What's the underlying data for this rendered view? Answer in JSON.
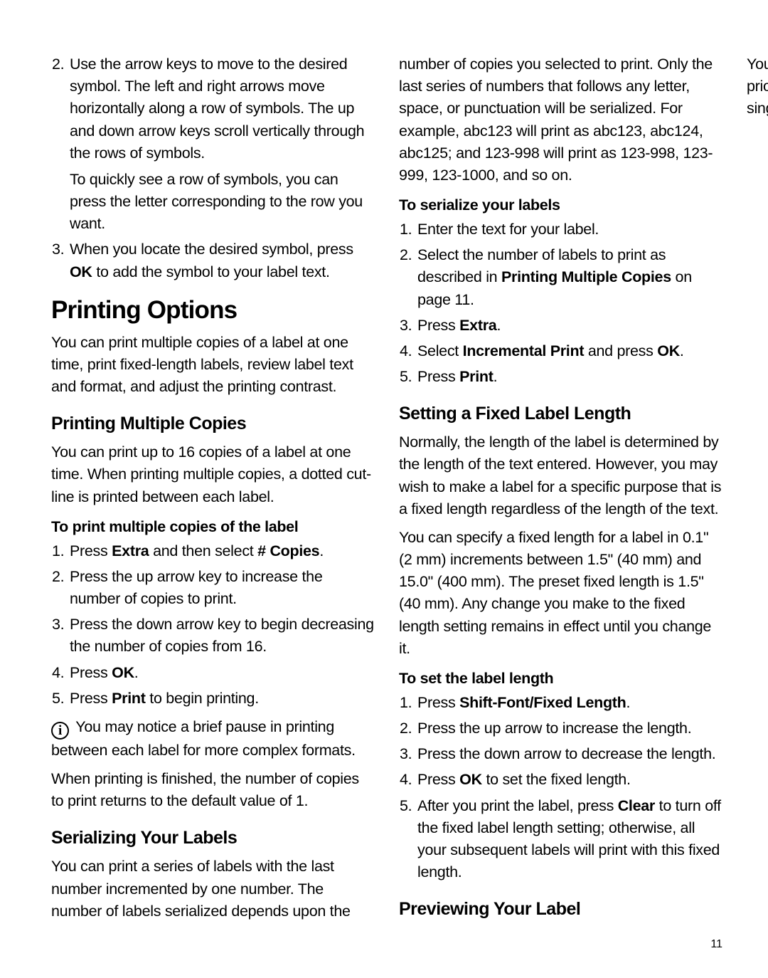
{
  "page_number": "11",
  "leftIntroList": {
    "item2_a": "Use the arrow keys to move to the desired symbol. The left and right arrows move horizontally along a row of symbols. The up and down arrow keys scroll vertically through the rows of symbols.",
    "item2_b": "To quickly see a row of symbols, you can press the letter corresponding to the row you want.",
    "item3_pre": "When you locate the desired symbol, press ",
    "item3_bold": "OK",
    "item3_post": " to add the symbol to your label text."
  },
  "printingOptions": {
    "heading": "Printing Options",
    "intro": "You can print multiple copies of a label at one time, print fixed-length labels, review label text and format, and adjust the printing contrast."
  },
  "multipleCopies": {
    "heading": "Printing Multiple Copies",
    "intro": "You can print up to 16 copies of a label at one time. When printing multiple copies, a dotted cut-line is printed between each label.",
    "procHeading": "To print multiple copies of the label",
    "s1_a": "Press ",
    "s1_b": "Extra",
    "s1_c": " and then select ",
    "s1_d": "# Copies",
    "s1_e": ".",
    "s2": "Press the up arrow key to increase the number of copies to print.",
    "s3": "Press the down arrow key to begin decreasing the number of copies from 16.",
    "s4_a": "Press ",
    "s4_b": "OK",
    "s4_c": ".",
    "s5_a": "Press ",
    "s5_b": "Print",
    "s5_c": " to begin printing.",
    "note": " You may notice a brief pause in printing between each label for more complex formats.",
    "after": "When printing is finished, the number of copies to print returns to the default value of 1."
  },
  "serializing": {
    "heading": "Serializing Your Labels",
    "intro": "You can print a series of labels with the last number incremented by one number. The number of labels serialized depends upon the number of copies you selected to print. Only the last series of numbers that follows any letter, space, or punctuation will be serialized. For example, abc123 will print as abc123, abc124, abc125; and 123-998 will print as 123-998, 123-999, 123-1000, and so on.",
    "procHeading": "To serialize your labels",
    "s1": "Enter the text for your label.",
    "s2_a": "Select the number of labels to print as described in ",
    "s2_b": "Printing Multiple Copies",
    "s2_c": " on page 11.",
    "s3_a": "Press ",
    "s3_b": "Extra",
    "s3_c": ".",
    "s4_a": "Select ",
    "s4_b": "Incremental Print",
    "s4_c": " and press ",
    "s4_d": "OK",
    "s4_e": ".",
    "s5_a": "Press ",
    "s5_b": "Print",
    "s5_c": "."
  },
  "fixedLength": {
    "heading": "Setting a Fixed Label Length",
    "intro1": "Normally, the length of the label is determined by the length of the text entered. However, you may wish to make a label for a specific purpose that is a fixed length regardless of the length of the text.",
    "intro2": "You can specify a fixed length for a label in 0.1\" (2 mm) increments between 1.5\" (40 mm) and 15.0\" (400 mm). The preset fixed length is 1.5\" (40 mm). Any change you make to the fixed length setting remains in effect until you change it.",
    "procHeading": "To set the label length",
    "s1_a": "Press ",
    "s1_b": "Shift-Font/Fixed Length",
    "s1_c": ".",
    "s2": "Press the up arrow to increase the length.",
    "s3": "Press the down arrow to decrease the length.",
    "s4_a": "Press ",
    "s4_b": "OK",
    "s4_c": " to set the fixed length.",
    "s5_a": "After you print the label, press ",
    "s5_b": "Clear",
    "s5_c": " to turn off the fixed label length setting; otherwise, all your subsequent labels will print with this fixed length."
  },
  "preview": {
    "heading": "Previewing Your Label",
    "intro": "You can preview the text or format of your label prior to printing. A two-line label is previewed as a single-line label."
  }
}
